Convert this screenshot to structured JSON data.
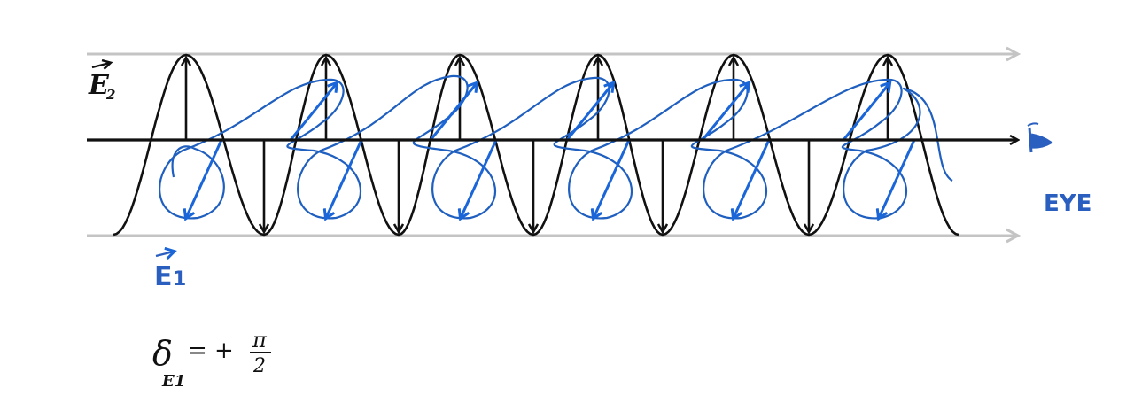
{
  "labels": {
    "e2": "E",
    "e2_sub": "2",
    "e1": "E",
    "e1_sub": "1",
    "eye": "EYE",
    "equation_lhs": "δ",
    "equation_sub": "E1",
    "equation_rhs": "= + π/2",
    "equation_eq": "= +",
    "equation_num": "π",
    "equation_den": "2"
  },
  "colors": {
    "axis": "#111111",
    "e2_wave": "#111111",
    "e1_wave": "#1f5fbf",
    "e1_arrows": "#1a66d9",
    "guide_lines": "#c4c4c4",
    "labels_blue": "#2a5fbf"
  },
  "icons": {
    "eye": "eye-icon"
  },
  "wave": {
    "cycles": 6,
    "phase_difference": "+π/2"
  }
}
